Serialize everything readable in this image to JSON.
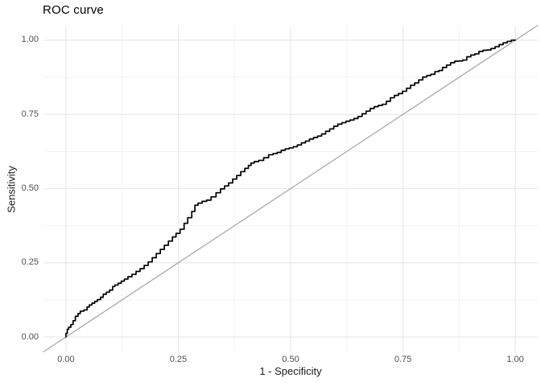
{
  "title": "ROC curve",
  "chart_data": {
    "type": "line",
    "title": "ROC curve",
    "xlabel": "1 - Specificity",
    "ylabel": "Sensitivity",
    "xlim": [
      -0.05,
      1.05
    ],
    "ylim": [
      -0.05,
      1.05
    ],
    "x_ticks": [
      "0.00",
      "0.25",
      "0.50",
      "0.75",
      "1.00"
    ],
    "y_ticks": [
      "0.00",
      "0.25",
      "0.50",
      "0.75",
      "1.00"
    ],
    "x_tick_values": [
      0,
      0.25,
      0.5,
      0.75,
      1
    ],
    "y_tick_values": [
      0,
      0.25,
      0.5,
      0.75,
      1
    ],
    "x_minor_tick_values": [
      0.125,
      0.375,
      0.625,
      0.875
    ],
    "y_minor_tick_values": [
      0.125,
      0.375,
      0.625,
      0.875
    ],
    "grid": true,
    "legend": "none",
    "colors": {
      "background": "#ffffff",
      "major_grid": "#e7e7e7",
      "minor_grid": "#f3f3f3",
      "roc_curve": "#000000",
      "reference_line": "#a9a9a9",
      "tick_text": "#4d4d4d",
      "axis_title_text": "#1a1a1a"
    },
    "series": [
      {
        "name": "reference-diagonal",
        "color": "#a9a9a9",
        "width": 1.3,
        "step": false,
        "points": [
          [
            -0.05,
            -0.05
          ],
          [
            1.05,
            1.05
          ]
        ]
      },
      {
        "name": "roc-curve",
        "color": "#000000",
        "width": 1.7,
        "step": true,
        "points": [
          [
            0.0,
            0.0
          ],
          [
            0.003,
            0.012
          ],
          [
            0.006,
            0.026
          ],
          [
            0.011,
            0.033
          ],
          [
            0.016,
            0.042
          ],
          [
            0.021,
            0.055
          ],
          [
            0.027,
            0.07
          ],
          [
            0.032,
            0.079
          ],
          [
            0.04,
            0.087
          ],
          [
            0.047,
            0.091
          ],
          [
            0.052,
            0.101
          ],
          [
            0.058,
            0.108
          ],
          [
            0.064,
            0.114
          ],
          [
            0.07,
            0.12
          ],
          [
            0.077,
            0.126
          ],
          [
            0.083,
            0.134
          ],
          [
            0.09,
            0.144
          ],
          [
            0.097,
            0.151
          ],
          [
            0.104,
            0.158
          ],
          [
            0.109,
            0.17
          ],
          [
            0.116,
            0.175
          ],
          [
            0.123,
            0.181
          ],
          [
            0.13,
            0.188
          ],
          [
            0.138,
            0.195
          ],
          [
            0.147,
            0.203
          ],
          [
            0.156,
            0.211
          ],
          [
            0.165,
            0.221
          ],
          [
            0.174,
            0.23
          ],
          [
            0.183,
            0.241
          ],
          [
            0.192,
            0.253
          ],
          [
            0.201,
            0.267
          ],
          [
            0.21,
            0.281
          ],
          [
            0.219,
            0.295
          ],
          [
            0.228,
            0.309
          ],
          [
            0.237,
            0.323
          ],
          [
            0.245,
            0.337
          ],
          [
            0.254,
            0.349
          ],
          [
            0.263,
            0.363
          ],
          [
            0.271,
            0.383
          ],
          [
            0.28,
            0.402
          ],
          [
            0.287,
            0.423
          ],
          [
            0.294,
            0.444
          ],
          [
            0.303,
            0.451
          ],
          [
            0.313,
            0.457
          ],
          [
            0.323,
            0.461
          ],
          [
            0.334,
            0.472
          ],
          [
            0.344,
            0.486
          ],
          [
            0.353,
            0.499
          ],
          [
            0.362,
            0.509
          ],
          [
            0.371,
            0.519
          ],
          [
            0.38,
            0.532
          ],
          [
            0.389,
            0.544
          ],
          [
            0.398,
            0.557
          ],
          [
            0.406,
            0.568
          ],
          [
            0.412,
            0.578
          ],
          [
            0.419,
            0.586
          ],
          [
            0.429,
            0.591
          ],
          [
            0.44,
            0.595
          ],
          [
            0.451,
            0.604
          ],
          [
            0.461,
            0.614
          ],
          [
            0.47,
            0.618
          ],
          [
            0.479,
            0.622
          ],
          [
            0.488,
            0.629
          ],
          [
            0.497,
            0.634
          ],
          [
            0.506,
            0.637
          ],
          [
            0.515,
            0.641
          ],
          [
            0.524,
            0.647
          ],
          [
            0.533,
            0.654
          ],
          [
            0.542,
            0.66
          ],
          [
            0.551,
            0.667
          ],
          [
            0.56,
            0.672
          ],
          [
            0.569,
            0.677
          ],
          [
            0.578,
            0.684
          ],
          [
            0.587,
            0.693
          ],
          [
            0.596,
            0.701
          ],
          [
            0.605,
            0.71
          ],
          [
            0.614,
            0.717
          ],
          [
            0.623,
            0.722
          ],
          [
            0.632,
            0.727
          ],
          [
            0.641,
            0.731
          ],
          [
            0.65,
            0.736
          ],
          [
            0.659,
            0.743
          ],
          [
            0.668,
            0.752
          ],
          [
            0.677,
            0.761
          ],
          [
            0.686,
            0.77
          ],
          [
            0.695,
            0.776
          ],
          [
            0.704,
            0.78
          ],
          [
            0.713,
            0.784
          ],
          [
            0.722,
            0.794
          ],
          [
            0.731,
            0.806
          ],
          [
            0.74,
            0.814
          ],
          [
            0.749,
            0.82
          ],
          [
            0.758,
            0.828
          ],
          [
            0.767,
            0.838
          ],
          [
            0.776,
            0.848
          ],
          [
            0.785,
            0.856
          ],
          [
            0.794,
            0.866
          ],
          [
            0.803,
            0.876
          ],
          [
            0.812,
            0.881
          ],
          [
            0.821,
            0.885
          ],
          [
            0.83,
            0.894
          ],
          [
            0.838,
            0.898
          ],
          [
            0.847,
            0.908
          ],
          [
            0.856,
            0.916
          ],
          [
            0.865,
            0.924
          ],
          [
            0.874,
            0.929
          ],
          [
            0.883,
            0.93
          ],
          [
            0.892,
            0.933
          ],
          [
            0.901,
            0.944
          ],
          [
            0.91,
            0.95
          ],
          [
            0.919,
            0.954
          ],
          [
            0.928,
            0.962
          ],
          [
            0.937,
            0.966
          ],
          [
            0.946,
            0.967
          ],
          [
            0.955,
            0.972
          ],
          [
            0.964,
            0.978
          ],
          [
            0.973,
            0.985
          ],
          [
            0.982,
            0.991
          ],
          [
            0.991,
            0.996
          ],
          [
            1.0,
            1.0
          ]
        ]
      }
    ]
  }
}
